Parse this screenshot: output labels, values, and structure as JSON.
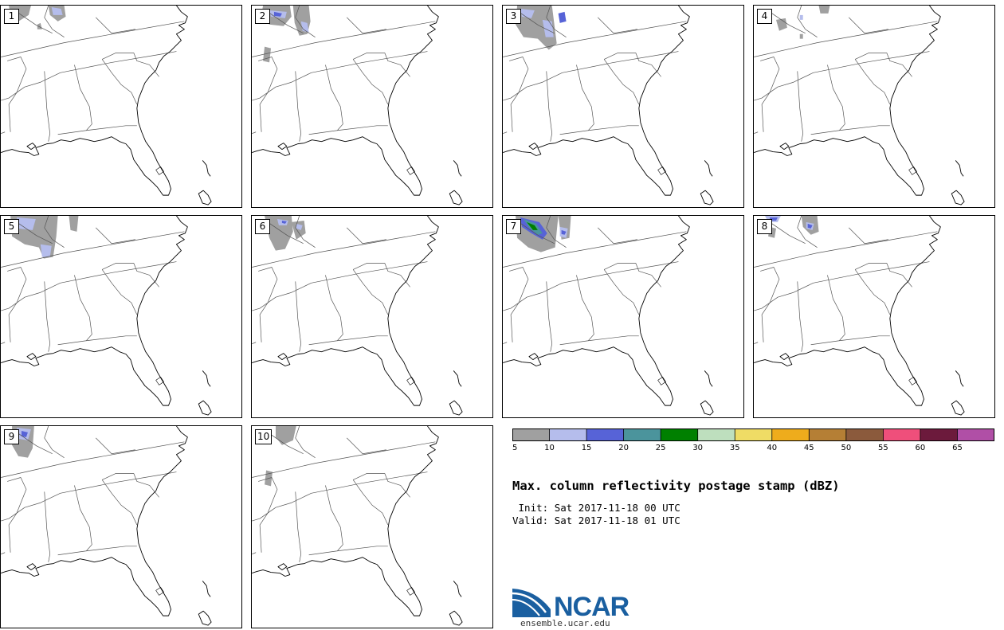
{
  "figure": {
    "title": "Max. column reflectivity postage stamp (dBZ)",
    "init_label": " Init:",
    "init_value": "Sat 2017-11-18 00 UTC",
    "valid_label": "Valid:",
    "valid_value": "Sat 2017-11-18 01 UTC"
  },
  "panels": [
    {
      "label": "1"
    },
    {
      "label": "2"
    },
    {
      "label": "3"
    },
    {
      "label": "4"
    },
    {
      "label": "5"
    },
    {
      "label": "6"
    },
    {
      "label": "7"
    },
    {
      "label": "8"
    },
    {
      "label": "9"
    },
    {
      "label": "10"
    }
  ],
  "colorbar": {
    "unit": "dBZ",
    "bins": [
      {
        "min": 5,
        "max": 10,
        "color": "#a0a0a0"
      },
      {
        "min": 10,
        "max": 15,
        "color": "#b5bdec"
      },
      {
        "min": 15,
        "max": 20,
        "color": "#5763d7"
      },
      {
        "min": 20,
        "max": 25,
        "color": "#4b949c"
      },
      {
        "min": 25,
        "max": 30,
        "color": "#008000"
      },
      {
        "min": 30,
        "max": 35,
        "color": "#bedfbe"
      },
      {
        "min": 35,
        "max": 40,
        "color": "#efdc65"
      },
      {
        "min": 40,
        "max": 45,
        "color": "#eeac1c"
      },
      {
        "min": 45,
        "max": 50,
        "color": "#b57f35"
      },
      {
        "min": 50,
        "max": 55,
        "color": "#8b5a3c"
      },
      {
        "min": 55,
        "max": 60,
        "color": "#ef4f7b"
      },
      {
        "min": 60,
        "max": 65,
        "color": "#6c1a3c"
      },
      {
        "min": 65,
        "max": 70,
        "color": "#b04fa6"
      }
    ],
    "tick_labels": [
      "5",
      "10",
      "15",
      "20",
      "25",
      "30",
      "35",
      "40",
      "45",
      "50",
      "55",
      "60",
      "65"
    ]
  },
  "logo": {
    "name": "NCAR",
    "url_text": "ensemble.ucar.edu",
    "color": "#1a5fa0"
  }
}
